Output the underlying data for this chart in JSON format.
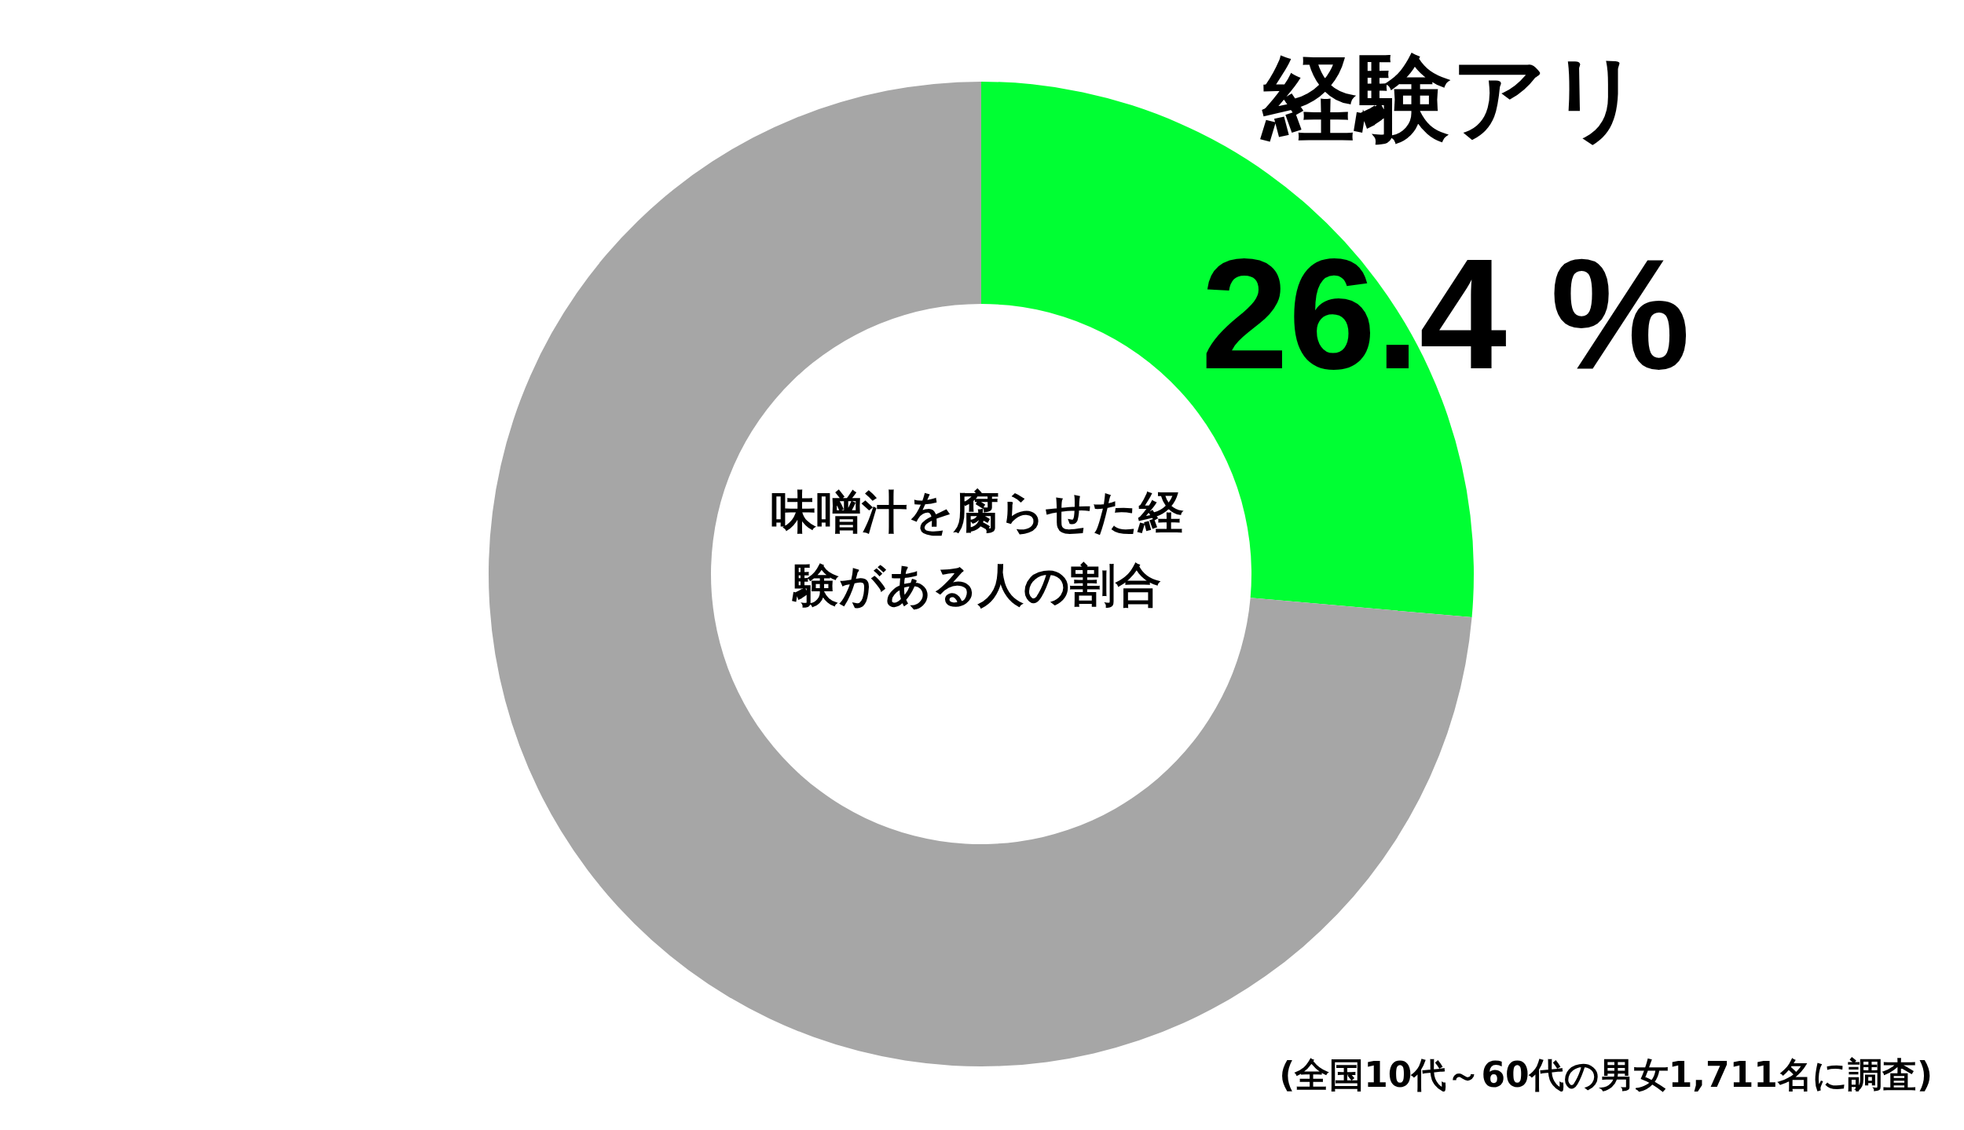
{
  "chart_data": {
    "type": "donut",
    "title": "味噌汁を腐らせた経験がある人の割合",
    "categories": [
      "経験アリ",
      null
    ],
    "values": [
      26.4,
      73.6
    ],
    "value_labels": [
      "26.4 %",
      null
    ],
    "colors": [
      "#00ff33",
      "#a6a6a6"
    ],
    "annotations": [
      "(全国10代～60代の男女1,711名に調査)"
    ]
  }
}
